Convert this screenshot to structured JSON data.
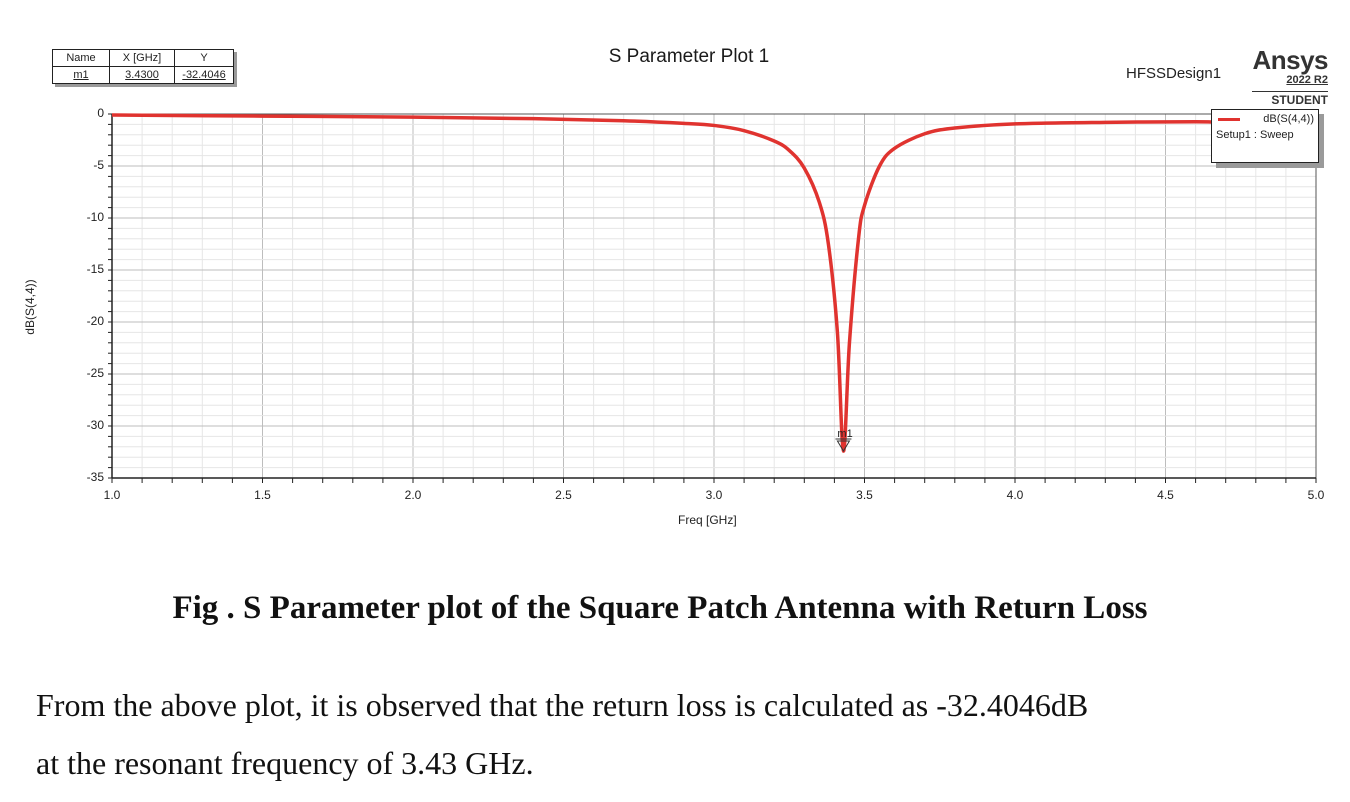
{
  "header": {
    "plot_title": "S Parameter Plot 1",
    "design_name": "HFSSDesign1",
    "brand": {
      "name": "Ansys",
      "version": "2022 R2",
      "edition": "STUDENT"
    }
  },
  "marker_table": {
    "headers": [
      "Name",
      "X [GHz]",
      "Y"
    ],
    "rows": [
      {
        "name": "m1",
        "x": "3.4300",
        "y": "-32.4046"
      }
    ]
  },
  "legend": {
    "trace": "dB(S(4,4))",
    "setup": "Setup1 : Sweep",
    "color": "#e0332f"
  },
  "marker_label": "m1",
  "caption": "Fig . S Parameter plot of the Square Patch Antenna with Return Loss",
  "paragraph": {
    "line1": "From the above plot, it is observed that the return loss is calculated as -32.4046dB",
    "line2": "at the resonant frequency of 3.43 GHz."
  },
  "chart_data": {
    "type": "line",
    "title": "S Parameter Plot 1",
    "xlabel": "Freq [GHz]",
    "ylabel": "dB(S(4,4))",
    "xlim": [
      1.0,
      5.0
    ],
    "ylim": [
      -35,
      0
    ],
    "x_ticks": [
      "1.0",
      "1.5",
      "2.0",
      "2.5",
      "3.0",
      "3.5",
      "4.0",
      "4.5",
      "5.0"
    ],
    "y_ticks": [
      "0",
      "-5",
      "-10",
      "-15",
      "-20",
      "-25",
      "-30",
      "-35"
    ],
    "grid": true,
    "legend_position": "top-right",
    "series": [
      {
        "name": "dB(S(4,4)) Setup1 : Sweep",
        "color": "#e0332f",
        "x": [
          1.0,
          1.5,
          2.0,
          2.4,
          2.7,
          2.9,
          3.0,
          3.1,
          3.2,
          3.25,
          3.3,
          3.35,
          3.38,
          3.41,
          3.43,
          3.45,
          3.48,
          3.5,
          3.55,
          3.6,
          3.7,
          3.8,
          4.0,
          4.3,
          4.6,
          4.7,
          5.0
        ],
        "values": [
          -0.1,
          -0.2,
          -0.3,
          -0.45,
          -0.65,
          -0.9,
          -1.1,
          -1.6,
          -2.6,
          -3.5,
          -5.2,
          -8.5,
          -12.5,
          -21.0,
          -32.4046,
          -22.0,
          -12.0,
          -8.8,
          -5.0,
          -3.3,
          -1.9,
          -1.35,
          -0.95,
          -0.8,
          -0.75,
          -0.8,
          -0.85
        ]
      }
    ],
    "markers": [
      {
        "name": "m1",
        "x": 3.43,
        "y": -32.4046
      }
    ]
  }
}
